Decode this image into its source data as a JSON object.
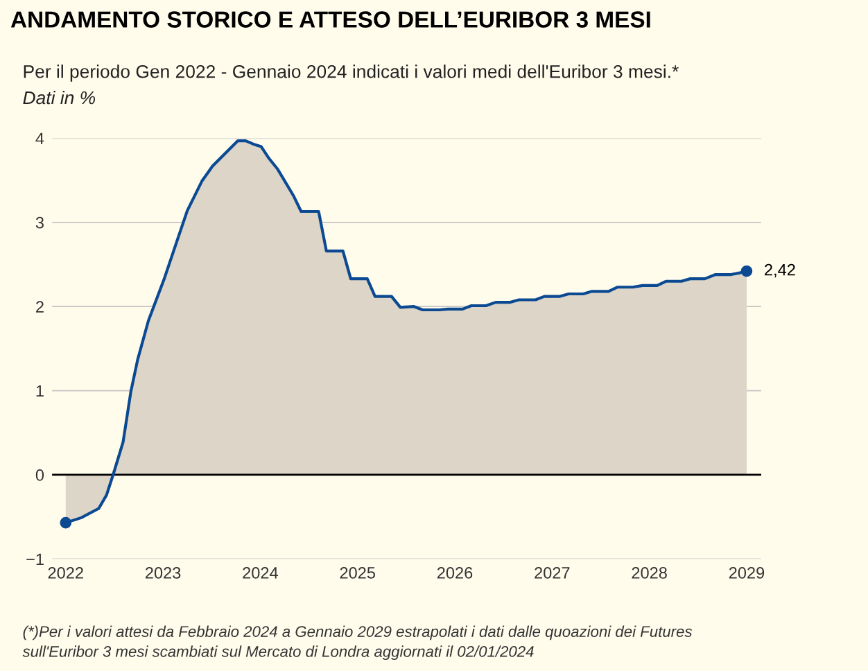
{
  "chart_data": {
    "type": "area",
    "title": "ANDAMENTO STORICO E ATTESO DELL’EURIBOR 3 MESI",
    "subtitle": "Per il periodo Gen 2022 - Gennaio 2024 indicati i valori medi dell'Euribor 3 mesi.*",
    "ylabel": "Dati in %",
    "series": [
      {
        "color": "#0b4a92",
        "x": [
          2022.0,
          2022.16,
          2022.34,
          2022.42,
          2022.49,
          2022.59,
          2022.67,
          2022.74,
          2022.85,
          2023.01,
          2023.15,
          2023.25,
          2023.4,
          2023.51,
          2023.64,
          2023.77,
          2023.85,
          2023.93,
          2024.01,
          2024.09,
          2024.18,
          2024.34,
          2024.42,
          2024.6,
          2024.68,
          2024.85,
          2024.93,
          2025.1,
          2025.18,
          2025.35,
          2025.44,
          2025.58,
          2025.67,
          2025.84,
          2025.93,
          2026.08,
          2026.17,
          2026.32,
          2026.42,
          2026.57,
          2026.66,
          2026.83,
          2026.92,
          2027.08,
          2027.17,
          2027.32,
          2027.41,
          2027.58,
          2027.67,
          2027.83,
          2027.93,
          2028.08,
          2028.17,
          2028.33,
          2028.42,
          2028.57,
          2028.68,
          2028.84,
          2028.93,
          2029.0
        ],
        "values": [
          -0.57,
          -0.51,
          -0.4,
          -0.24,
          0.01,
          0.39,
          0.99,
          1.37,
          1.83,
          2.32,
          2.8,
          3.14,
          3.49,
          3.67,
          3.82,
          3.97,
          3.97,
          3.93,
          3.9,
          3.76,
          3.63,
          3.32,
          3.13,
          3.13,
          2.66,
          2.66,
          2.33,
          2.33,
          2.12,
          2.12,
          1.99,
          2.0,
          1.96,
          1.96,
          1.97,
          1.97,
          2.01,
          2.01,
          2.05,
          2.05,
          2.08,
          2.08,
          2.12,
          2.12,
          2.15,
          2.15,
          2.18,
          2.18,
          2.23,
          2.23,
          2.25,
          2.25,
          2.3,
          2.3,
          2.33,
          2.33,
          2.38,
          2.38,
          2.4,
          2.42
        ]
      },
      {
        "type": "scatter",
        "color": "#0b4a92",
        "x": [
          2022.0,
          2029.0
        ],
        "values": [
          -0.57,
          2.42
        ]
      }
    ],
    "xlim": [
      2021.86,
      2029.15
    ],
    "xticks": [
      2022,
      2023,
      2024,
      2025,
      2026,
      2027,
      2028,
      2029
    ],
    "ylim": [
      -1,
      4
    ],
    "yticks": [
      {
        "value": -1,
        "label": "−1"
      },
      0,
      1,
      2,
      3,
      4
    ],
    "grid": "y",
    "legend": false,
    "ref_lines": [
      {
        "axis": "y",
        "value": 0,
        "color": "#000000"
      }
    ],
    "annotations": [
      {
        "text": "2,42",
        "x": 2029.0,
        "y": 2.42
      },
      "(*)Per i valori attesi da Febbraio 2024 a Gennaio 2029 estrapolati i dati dalle quoazioni dei Futures\nsull'Euribor 3 mesi scambiati sul Mercato di Londra aggiornati il 02/01/2024"
    ]
  }
}
